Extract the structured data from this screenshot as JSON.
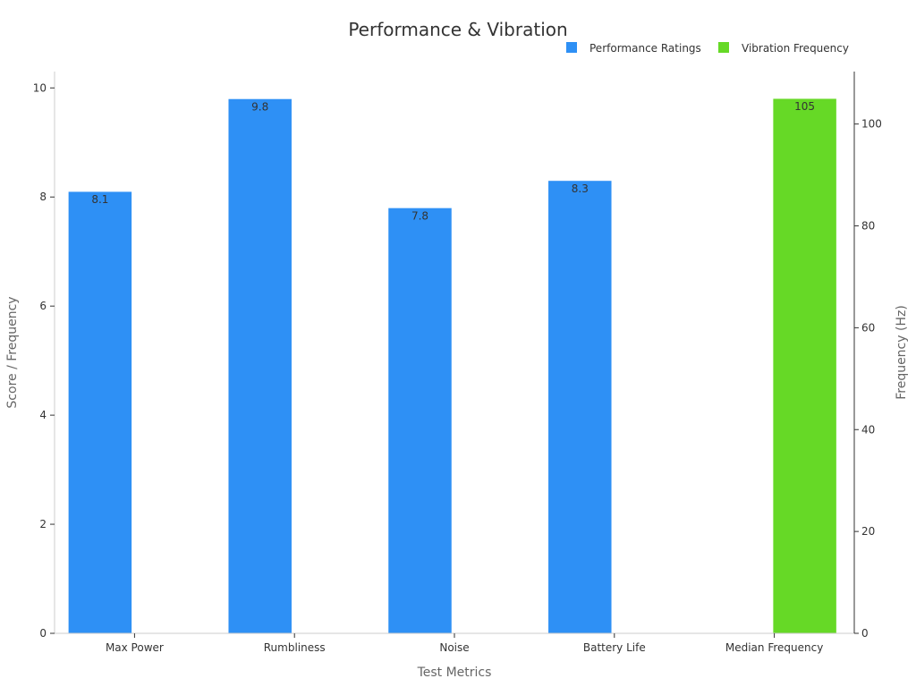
{
  "chart_data": {
    "type": "bar",
    "title": "Performance & Vibration",
    "xlabel": "Test Metrics",
    "ylabel": "Score / Frequency",
    "y2label": "Frequency (Hz)",
    "categories": [
      "Max Power",
      "Rumbliness",
      "Noise",
      "Battery Life",
      "Median Frequency"
    ],
    "series": [
      {
        "name": "Performance Ratings",
        "axis": "left",
        "color": "#2E90F5",
        "values": [
          8.1,
          9.8,
          7.8,
          8.3,
          null
        ],
        "labels": [
          "8.1",
          "9.8",
          "7.8",
          "8.3",
          ""
        ]
      },
      {
        "name": "Vibration Frequency",
        "axis": "right",
        "color": "#66D926",
        "values": [
          null,
          null,
          null,
          null,
          105
        ],
        "labels": [
          "",
          "",
          "",
          "",
          "105"
        ]
      }
    ],
    "ylim": [
      0,
      10.3
    ],
    "yticks": [
      0,
      2,
      4,
      6,
      8,
      10
    ],
    "y2lim": [
      0,
      110.3
    ],
    "y2ticks": [
      0,
      20,
      40,
      60,
      80,
      100
    ],
    "legend_position": "top-right"
  }
}
